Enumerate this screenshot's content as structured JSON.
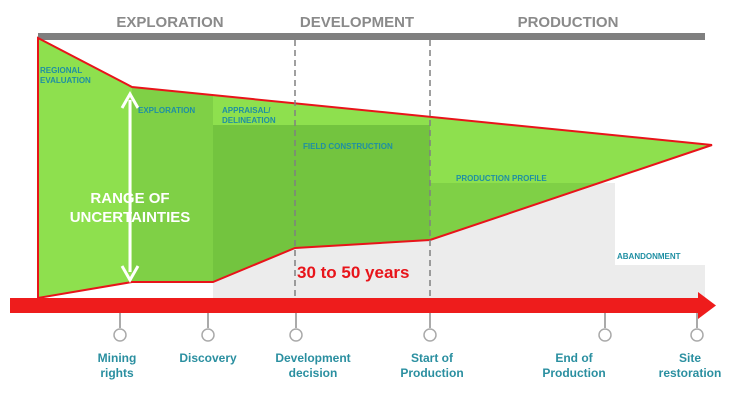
{
  "phases": [
    "EXPLORATION",
    "DEVELOPMENT",
    "PRODUCTION"
  ],
  "stages": [
    [
      "REGIONAL",
      "EVALUATION"
    ],
    [
      "EXPLORATION"
    ],
    [
      "APPRAISAL/",
      "DELINEATION"
    ],
    [
      "FIELD CONSTRUCTION"
    ],
    [
      "PRODUCTION  PROFILE"
    ],
    [
      "ABANDONMENT"
    ]
  ],
  "range_label": [
    "RANGE OF",
    "UNCERTAINTIES"
  ],
  "duration": "30 to 50 years",
  "milestones": [
    [
      "Mining",
      "rights"
    ],
    [
      "Discovery"
    ],
    [
      "Development",
      "decision"
    ],
    [
      "Start of",
      "Production"
    ],
    [
      "End of",
      "Production"
    ],
    [
      "Site",
      "restoration"
    ]
  ]
}
